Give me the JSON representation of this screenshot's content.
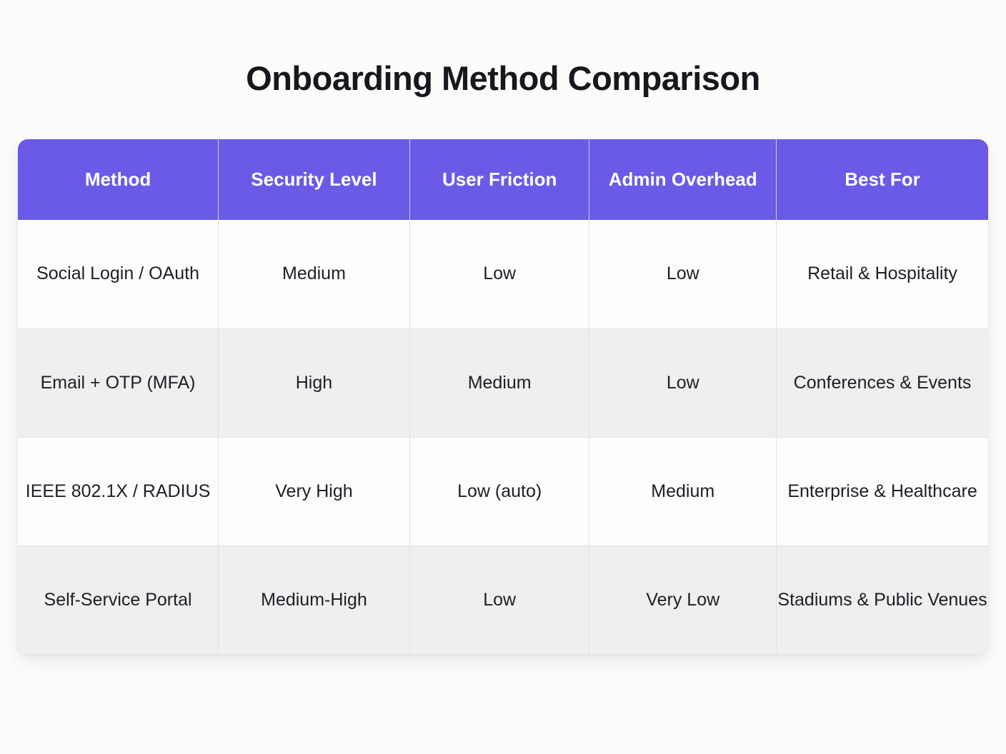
{
  "title": "Onboarding Method Comparison",
  "chart_data": {
    "type": "table",
    "title": "Onboarding Method Comparison",
    "columns": [
      "Method",
      "Security Level",
      "User Friction",
      "Admin Overhead",
      "Best For"
    ],
    "rows": [
      [
        "Social Login / OAuth",
        "Medium",
        "Low",
        "Low",
        "Retail & Hospitality"
      ],
      [
        "Email + OTP (MFA)",
        "High",
        "Medium",
        "Low",
        "Conferences & Events"
      ],
      [
        "IEEE 802.1X / RADIUS",
        "Very High",
        "Low (auto)",
        "Medium",
        "Enterprise & Healthcare"
      ],
      [
        "Self-Service Portal",
        "Medium-High",
        "Low",
        "Very Low",
        "Stadiums & Public Venues"
      ]
    ],
    "layout": {
      "header_position": "top",
      "row_striping": "alternating",
      "cell_alignment": "center"
    }
  },
  "colors": {
    "header_bg": "#6a5ae8",
    "header_text": "#ffffff",
    "row_bg": "#fdfdfe",
    "row_alt_bg": "#efeff0",
    "page_bg": "#fcfbf9",
    "border": "#e2e2e5",
    "text": "#1e1e26",
    "title_text": "#17171e"
  }
}
